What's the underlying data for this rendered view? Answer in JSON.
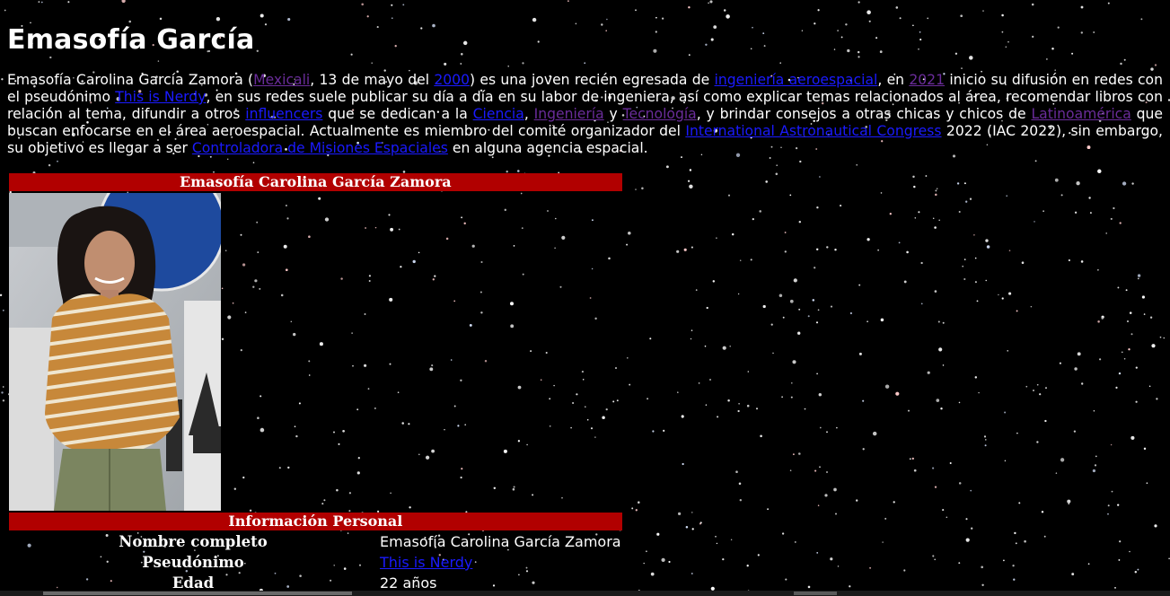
{
  "title": "Emasofía García",
  "intro": [
    {
      "t": "Emasofía Carolina García Zamora ("
    },
    {
      "t": "Mexicali",
      "link": "visited"
    },
    {
      "t": ", 13 de mayo del "
    },
    {
      "t": "2000",
      "link": "unvisited"
    },
    {
      "t": ") es una joven recién egresada de "
    },
    {
      "t": "ingeniería aeroespacial",
      "link": "unvisited"
    },
    {
      "t": ", en "
    },
    {
      "t": "2021",
      "link": "visited"
    },
    {
      "t": " inicio su difusión en redes con el pseudónimo "
    },
    {
      "t": "This is Nerdy",
      "link": "unvisited"
    },
    {
      "t": ", en sus redes suele publicar su día a día en su labor de ingeniera, así como explicar temas relacionados al área, recomendar libros con relación al tema, difundir a otros "
    },
    {
      "t": "influencers",
      "link": "unvisited"
    },
    {
      "t": " que se dedican a la "
    },
    {
      "t": "Ciencia",
      "link": "unvisited"
    },
    {
      "t": ", "
    },
    {
      "t": "Ingeniería",
      "link": "visited"
    },
    {
      "t": " y "
    },
    {
      "t": "Tecnología",
      "link": "visited"
    },
    {
      "t": ", y brindar consejos a otras chicas y chicos de "
    },
    {
      "t": "Latinoamérica",
      "link": "visited"
    },
    {
      "t": " que buscan enfocarse en el área aeroespacial. Actualmente es miembro del comité organizador del "
    },
    {
      "t": "International Astronautical Congress",
      "link": "unvisited"
    },
    {
      "t": " 2022 (IAC 2022), sin embargo, su objetivo es llegar a ser "
    },
    {
      "t": "Controladora de Misiones Espaciales",
      "link": "unvisited"
    },
    {
      "t": " en alguna agencia espacial."
    }
  ],
  "infobox": {
    "header": "Emasofía Carolina García Zamora",
    "section": "Información Personal",
    "rows": [
      {
        "label": "Nombre completo",
        "value": "Emasofía Carolina García Zamora"
      },
      {
        "label": "Pseudónimo",
        "value": "This is Nerdy",
        "link": "unvisited"
      },
      {
        "label": "Edad",
        "value": "22 años"
      }
    ]
  },
  "colors": {
    "background": "#000000",
    "header_red": "#b10000",
    "link_unvisited": "#1a1aff",
    "link_visited": "#6a2c9a"
  }
}
